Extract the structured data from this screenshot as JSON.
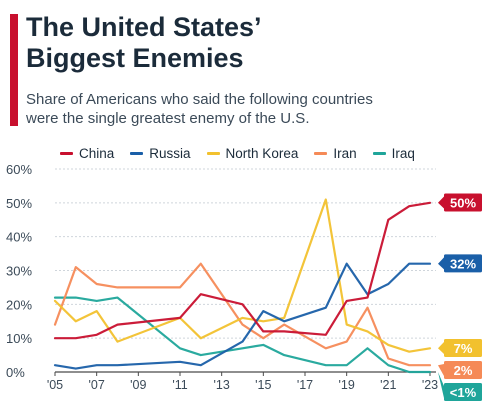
{
  "accent_color": "#c8102e",
  "header": {
    "title_lines": [
      "The United States’",
      "Biggest Enemies"
    ],
    "subtitle_lines": [
      "Share of Americans who said the following countries",
      "were the single greatest enemy of the U.S."
    ]
  },
  "chart_data": {
    "type": "line",
    "title": "The United States’ Biggest Enemies",
    "subtitle": "Share of Americans who said the following countries were the single greatest enemy of the U.S.",
    "xlabel": "",
    "ylabel": "",
    "x": [
      2005,
      2006,
      2007,
      2008,
      2011,
      2012,
      2014,
      2015,
      2016,
      2018,
      2019,
      2020,
      2021,
      2022,
      2023
    ],
    "x_tick_values": [
      2005,
      2007,
      2009,
      2011,
      2013,
      2015,
      2017,
      2019,
      2021,
      2023
    ],
    "x_tick_labels": [
      "'05",
      "'07",
      "'09",
      "'11",
      "'13",
      "'15",
      "'17",
      "'19",
      "'21",
      "'23"
    ],
    "xlim": [
      2005,
      2023
    ],
    "ylim": [
      0,
      60
    ],
    "y_ticks": [
      0,
      10,
      20,
      30,
      40,
      50,
      60
    ],
    "y_tick_labels": [
      "0%",
      "10%",
      "20%",
      "30%",
      "40%",
      "50%",
      "60%"
    ],
    "grid": true,
    "legend_position": "top",
    "series": [
      {
        "name": "China",
        "color": "#c8102e",
        "values": [
          10,
          10,
          11,
          14,
          16,
          23,
          20,
          12,
          12,
          11,
          21,
          22,
          45,
          49,
          50
        ],
        "end_label": "50%"
      },
      {
        "name": "Russia",
        "color": "#1a5fa8",
        "values": [
          2,
          1,
          2,
          2,
          3,
          2,
          9,
          18,
          15,
          19,
          32,
          23,
          26,
          32,
          32
        ],
        "end_label": "32%"
      },
      {
        "name": "North Korea",
        "color": "#f2c12e",
        "values": [
          21,
          15,
          18,
          9,
          16,
          10,
          16,
          15,
          16,
          51,
          14,
          12,
          8,
          6,
          7
        ],
        "end_label": "7%"
      },
      {
        "name": "Iran",
        "color": "#f58a57",
        "values": [
          14,
          31,
          26,
          25,
          25,
          32,
          14,
          10,
          14,
          7,
          9,
          19,
          4,
          2,
          2
        ],
        "end_label": "2%"
      },
      {
        "name": "Iraq",
        "color": "#1fa59a",
        "values": [
          22,
          22,
          21,
          22,
          7,
          5,
          7,
          8,
          5,
          2,
          2,
          7,
          2,
          0,
          0
        ],
        "end_label": "<1%"
      }
    ]
  }
}
